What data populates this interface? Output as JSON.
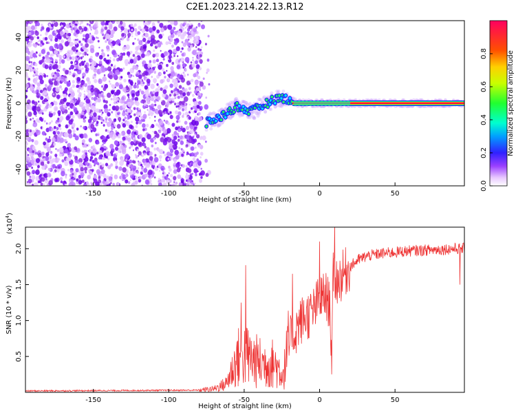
{
  "title": "C2E1.2023.214.22.13.R12",
  "chart_data": [
    {
      "type": "heatmap",
      "xlabel": "Height of straight line (km)",
      "ylabel": "Frequency (Hz)",
      "xlim": [
        -195,
        96
      ],
      "ylim": [
        -50,
        50
      ],
      "xticks": [
        -150,
        -100,
        -50,
        0,
        50
      ],
      "xtick_labels": [
        "-150",
        "-100",
        "-50",
        "0",
        "50"
      ],
      "yticks": [
        -40,
        -20,
        0,
        20,
        40
      ],
      "ytick_labels": [
        "-40",
        "-20",
        "0",
        "20",
        "40"
      ],
      "colorbar": {
        "label": "Normalized spectral amplitude",
        "range": [
          0,
          1
        ],
        "ticks": [
          0.0,
          0.2,
          0.4,
          0.6,
          0.8
        ],
        "tick_labels": [
          "0.0",
          "0.2",
          "0.4",
          "0.6",
          "0.8"
        ]
      },
      "description_points": {
        "noise_region_x": [
          -195,
          -78
        ],
        "ridge_x": [
          -75,
          -65,
          -55,
          -45,
          -35,
          -28,
          -22,
          -15,
          0,
          20,
          50,
          95
        ],
        "ridge_freq_hz": [
          -12,
          -8,
          -2,
          -5,
          0,
          3,
          3,
          0,
          0,
          0,
          0,
          0
        ]
      }
    },
    {
      "type": "line",
      "xlabel": "Height of straight line (km)",
      "ylabel": "SNR (10 * v/v)",
      "yscale_label": "(x10",
      "yscale_exp": "4",
      "yscale_close": ")",
      "xlim": [
        -195,
        96
      ],
      "ylim": [
        0,
        2.3
      ],
      "xticks": [
        -150,
        -100,
        -50,
        0,
        50
      ],
      "xtick_labels": [
        "-150",
        "-100",
        "-50",
        "0",
        "50"
      ],
      "yticks": [
        0.5,
        1.0,
        1.5,
        2.0
      ],
      "ytick_labels": [
        "0.5",
        "1.0",
        "1.5",
        "2.0"
      ],
      "color": "#ee3333",
      "envelope_x": [
        -195,
        -80,
        -70,
        -62,
        -56,
        -52,
        -48,
        -44,
        -38,
        -30,
        -24,
        -20,
        -17,
        -14,
        -10,
        -5,
        0,
        4,
        7,
        8,
        9,
        10,
        12,
        16,
        20,
        26,
        32,
        40,
        50,
        60,
        70,
        80,
        90,
        96
      ],
      "envelope_y": [
        0.02,
        0.03,
        0.05,
        0.12,
        0.4,
        0.55,
        0.5,
        0.45,
        0.4,
        0.4,
        0.25,
        0.7,
        0.8,
        0.95,
        1.05,
        1.1,
        1.3,
        1.35,
        1.2,
        0.4,
        1.6,
        1.6,
        1.55,
        1.65,
        1.75,
        1.85,
        1.9,
        1.93,
        1.95,
        1.97,
        1.98,
        1.99,
        2.0,
        2.0
      ],
      "spikes": [
        [
          -49,
          1.77
        ],
        [
          -52,
          1.25
        ],
        [
          -18,
          1.65
        ],
        [
          0,
          2.1
        ],
        [
          10,
          2.35
        ],
        [
          8,
          0.25
        ],
        [
          93,
          1.5
        ]
      ]
    }
  ]
}
